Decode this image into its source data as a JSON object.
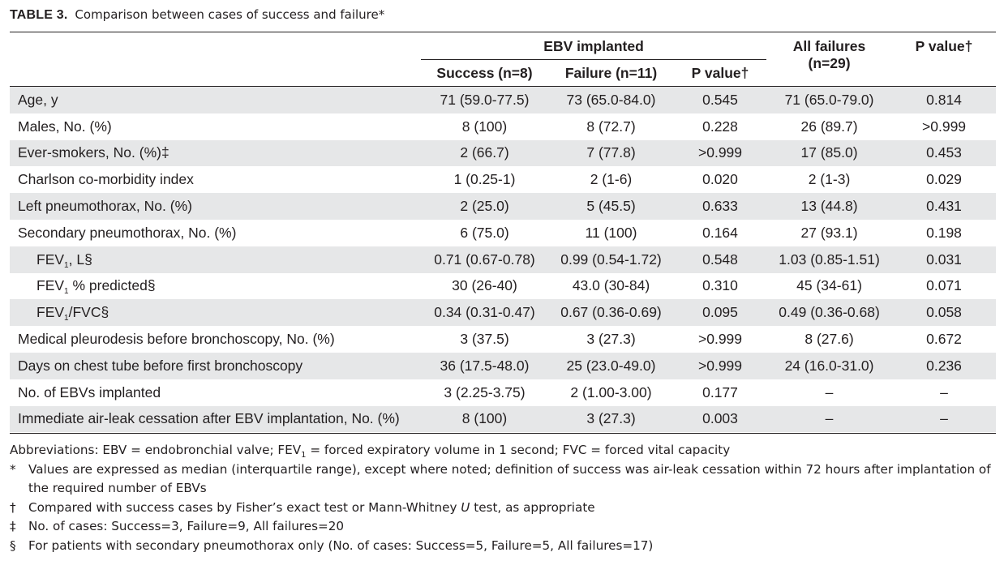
{
  "title": {
    "label": "TABLE 3.",
    "text": "Comparison between cases of success and failure*"
  },
  "header": {
    "group": "EBV implanted",
    "success": "Success (n=8)",
    "failure": "Failure (n=11)",
    "p_value": "P value†",
    "all_failures_line1": "All failures",
    "all_failures_line2": "(n=29)",
    "p_value_all": "P value†"
  },
  "rows": [
    {
      "label": "Age, y",
      "success": "71 (59.0-77.5)",
      "failure": "73 (65.0-84.0)",
      "p": "0.545",
      "all": "71 (65.0-79.0)",
      "p_all": "0.814"
    },
    {
      "label": "Males, No. (%)",
      "success": "8 (100)",
      "failure": "8 (72.7)",
      "p": "0.228",
      "all": "26 (89.7)",
      "p_all": ">0.999"
    },
    {
      "label": "Ever-smokers, No. (%)‡",
      "success": "2 (66.7)",
      "failure": "7 (77.8)",
      "p": ">0.999",
      "all": "17 (85.0)",
      "p_all": "0.453"
    },
    {
      "label": "Charlson co-morbidity index",
      "success": "1 (0.25-1)",
      "failure": "2 (1-6)",
      "p": "0.020",
      "all": "2 (1-3)",
      "p_all": "0.029"
    },
    {
      "label": "Left pneumothorax, No. (%)",
      "success": "2 (25.0)",
      "failure": "5 (45.5)",
      "p": "0.633",
      "all": "13 (44.8)",
      "p_all": "0.431"
    },
    {
      "label": "Secondary pneumothorax, No. (%)",
      "success": "6 (75.0)",
      "failure": "11 (100)",
      "p": "0.164",
      "all": "27 (93.1)",
      "p_all": "0.198"
    },
    {
      "label_pre": "FEV",
      "label_sub": "1",
      "label_post": ", L§",
      "success": "0.71 (0.67-0.78)",
      "failure": "0.99 (0.54-1.72)",
      "p": "0.548",
      "all": "1.03 (0.85-1.51)",
      "p_all": "0.031"
    },
    {
      "label_pre": "FEV",
      "label_sub": "1",
      "label_post": " % predicted§",
      "success": "30 (26-40)",
      "failure": "43.0 (30-84)",
      "p": "0.310",
      "all": "45 (34-61)",
      "p_all": "0.071"
    },
    {
      "label_pre": "FEV",
      "label_sub": "1",
      "label_post": "/FVC§",
      "success": "0.34 (0.31-0.47)",
      "failure": "0.67 (0.36-0.69)",
      "p": "0.095",
      "all": "0.49 (0.36-0.68)",
      "p_all": "0.058"
    },
    {
      "label": "Medical pleurodesis before bronchoscopy, No. (%)",
      "success": "3 (37.5)",
      "failure": "3 (27.3)",
      "p": ">0.999",
      "all": "8 (27.6)",
      "p_all": "0.672"
    },
    {
      "label": "Days on chest tube before first bronchoscopy",
      "success": "36 (17.5-48.0)",
      "failure": "25 (23.0-49.0)",
      "p": ">0.999",
      "all": "24 (16.0-31.0)",
      "p_all": "0.236"
    },
    {
      "label": "No. of EBVs implanted",
      "success": "3 (2.25-3.75)",
      "failure": "2 (1.00-3.00)",
      "p": "0.177",
      "all": "–",
      "p_all": "–"
    },
    {
      "label": "Immediate air-leak cessation after EBV implantation, No. (%)",
      "success": "8 (100)",
      "failure": "3 (27.3)",
      "p": "0.003",
      "all": "–",
      "p_all": "–"
    }
  ],
  "notes": {
    "abbrev_pre": "Abbreviations: EBV = endobronchial valve; FEV",
    "abbrev_sub": "1",
    "abbrev_post": " = forced expiratory volume in 1 second; FVC = forced vital capacity",
    "star_sym": "*",
    "star_text": "Values are expressed as median (interquartile range), except where noted; definition of success was air-leak cessation within 72 hours after implantation of the required number of EBVs",
    "dagger_sym": "†",
    "dagger_pre": "Compared with success cases by Fisher’s exact test or Mann-Whitney ",
    "dagger_u": "U",
    "dagger_post": " test, as appropriate",
    "ddagger_sym": "‡",
    "ddagger_text": "No. of cases: Success=3, Failure=9, All failures=20",
    "section_sym": "§",
    "section_text": "For patients with secondary pneumothorax only (No. of cases: Success=5, Failure=5, All failures=17)"
  }
}
